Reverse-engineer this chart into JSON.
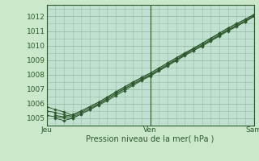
{
  "xlabel": "Pression niveau de la mer( hPa )",
  "bg_color": "#cce8cc",
  "plot_bg_color": "#c0e0d0",
  "grid_color": "#99bbaa",
  "line_color": "#2d5a2d",
  "marker_color": "#2d5a2d",
  "xlim": [
    0,
    48
  ],
  "ylim": [
    1004.5,
    1012.8
  ],
  "yticks": [
    1005,
    1006,
    1007,
    1008,
    1009,
    1010,
    1011,
    1012
  ],
  "xtick_positions": [
    0,
    24,
    48
  ],
  "xtick_labels": [
    "Jeu",
    "Ven",
    "Sam"
  ],
  "series": [
    {
      "x": [
        0,
        2,
        4,
        6,
        8,
        10,
        12,
        14,
        16,
        18,
        20,
        22,
        24,
        26,
        28,
        30,
        32,
        34,
        36,
        38,
        40,
        42,
        44,
        46,
        48
      ],
      "y": [
        1005.2,
        1005.1,
        1005.05,
        1005.0,
        1005.3,
        1005.6,
        1005.9,
        1006.2,
        1006.55,
        1006.9,
        1007.25,
        1007.6,
        1007.9,
        1008.25,
        1008.6,
        1008.95,
        1009.3,
        1009.65,
        1009.95,
        1010.3,
        1010.65,
        1011.0,
        1011.3,
        1011.65,
        1012.0
      ]
    },
    {
      "x": [
        0,
        2,
        4,
        6,
        8,
        10,
        12,
        14,
        16,
        18,
        20,
        22,
        24,
        26,
        28,
        30,
        32,
        34,
        36,
        38,
        40,
        42,
        44,
        46,
        48
      ],
      "y": [
        1005.5,
        1005.4,
        1005.25,
        1005.1,
        1005.4,
        1005.7,
        1006.0,
        1006.35,
        1006.7,
        1007.05,
        1007.35,
        1007.7,
        1008.0,
        1008.35,
        1008.7,
        1009.05,
        1009.4,
        1009.75,
        1010.05,
        1010.4,
        1010.75,
        1011.1,
        1011.4,
        1011.7,
        1012.05
      ]
    },
    {
      "x": [
        2,
        4,
        6,
        8,
        10,
        12,
        14,
        16,
        18,
        20,
        22,
        24,
        26,
        28,
        30,
        32,
        34,
        36,
        38,
        40,
        42,
        44,
        46,
        48
      ],
      "y": [
        1005.0,
        1004.85,
        1005.0,
        1005.3,
        1005.6,
        1005.95,
        1006.3,
        1006.65,
        1007.0,
        1007.35,
        1007.65,
        1007.95,
        1008.3,
        1008.65,
        1009.0,
        1009.35,
        1009.65,
        1010.0,
        1010.35,
        1010.7,
        1011.05,
        1011.35,
        1011.65,
        1012.0
      ]
    },
    {
      "x": [
        2,
        4,
        6,
        8,
        10,
        12,
        14,
        16,
        18,
        20,
        22,
        24,
        26,
        28,
        30,
        32,
        34,
        36,
        38,
        40,
        42,
        44,
        46,
        48
      ],
      "y": [
        1005.2,
        1005.1,
        1005.25,
        1005.5,
        1005.8,
        1006.1,
        1006.45,
        1006.8,
        1007.15,
        1007.5,
        1007.8,
        1008.1,
        1008.45,
        1008.8,
        1009.15,
        1009.5,
        1009.8,
        1010.15,
        1010.5,
        1010.85,
        1011.2,
        1011.5,
        1011.8,
        1012.15
      ]
    },
    {
      "x": [
        0,
        2,
        4,
        6,
        8,
        10,
        12,
        14,
        16,
        18,
        20,
        22,
        24,
        26,
        28,
        30,
        32,
        34,
        36,
        38,
        40,
        42,
        44,
        46,
        48
      ],
      "y": [
        1005.8,
        1005.6,
        1005.45,
        1005.2,
        1005.5,
        1005.8,
        1006.1,
        1006.45,
        1006.8,
        1007.15,
        1007.45,
        1007.8,
        1008.1,
        1008.45,
        1008.8,
        1009.15,
        1009.45,
        1009.8,
        1010.15,
        1010.5,
        1010.85,
        1011.2,
        1011.5,
        1011.8,
        1012.1
      ]
    }
  ]
}
